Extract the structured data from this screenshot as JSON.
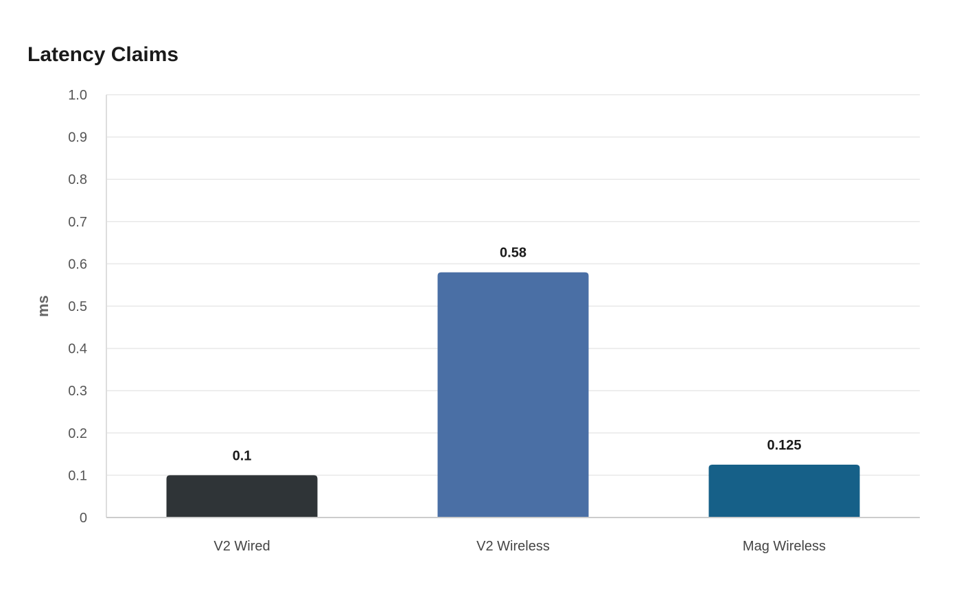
{
  "chart_data": {
    "type": "bar",
    "title": "Latency Claims",
    "ylabel": "ms",
    "xlabel": "",
    "categories": [
      "V2 Wired",
      "V2 Wireless",
      "Mag Wireless"
    ],
    "values": [
      0.1,
      0.58,
      0.125
    ],
    "value_labels": [
      "0.1",
      "0.58",
      "0.125"
    ],
    "colors": [
      "#2f3437",
      "#4a6fa5",
      "#166088"
    ],
    "ylim": [
      0,
      1.0
    ],
    "yticks": [
      0,
      0.1,
      0.2,
      0.3,
      0.4,
      0.5,
      0.6,
      0.7,
      0.8,
      0.9,
      1.0
    ],
    "ytick_labels": [
      "0",
      "0.1",
      "0.2",
      "0.3",
      "0.4",
      "0.5",
      "0.6",
      "0.7",
      "0.8",
      "0.9",
      "1.0"
    ],
    "grid": true,
    "legend": "none"
  }
}
